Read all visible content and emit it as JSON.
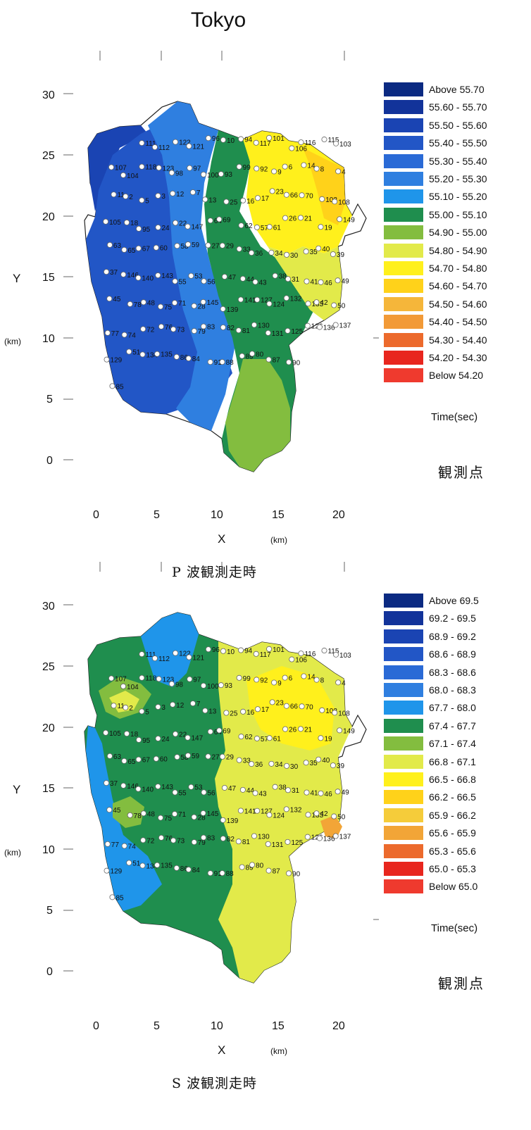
{
  "title": "Tokyo",
  "panels": [
    {
      "id": "p",
      "x_axis": {
        "name": "X",
        "unit": "(km)",
        "ticks": [
          "0",
          "5",
          "10",
          "15",
          "20"
        ]
      },
      "y_axis": {
        "name": "Y",
        "unit": "(km)",
        "ticks": [
          "30",
          "25",
          "20",
          "15",
          "10",
          "5",
          "0"
        ]
      },
      "legend": [
        {
          "label": "Above   55.70",
          "color": "#0b2a82"
        },
        {
          "label": "55.60 - 55.70",
          "color": "#12339a"
        },
        {
          "label": "55.50 - 55.60",
          "color": "#1a44b3"
        },
        {
          "label": "55.40 - 55.50",
          "color": "#2256c6"
        },
        {
          "label": "55.30 - 55.40",
          "color": "#2a6ad6"
        },
        {
          "label": "55.20 - 55.30",
          "color": "#2f7fe0"
        },
        {
          "label": "55.10 - 55.20",
          "color": "#1f95ea"
        },
        {
          "label": "55.00 - 55.10",
          "color": "#1f8e4e"
        },
        {
          "label": "54.90 - 55.00",
          "color": "#83bd3f"
        },
        {
          "label": "54.80 - 54.90",
          "color": "#e2ea4a"
        },
        {
          "label": "54.70 - 54.80",
          "color": "#fff01c"
        },
        {
          "label": "54.60 - 54.70",
          "color": "#ffd21a"
        },
        {
          "label": "54.50 - 54.60",
          "color": "#f5b63a"
        },
        {
          "label": "54.40 - 54.50",
          "color": "#f29a37"
        },
        {
          "label": "54.30 - 54.40",
          "color": "#ec6a2c"
        },
        {
          "label": "54.20 - 54.30",
          "color": "#e8261e"
        },
        {
          "label": "Below   54.20",
          "color": "#ef3a2e"
        }
      ],
      "time_label": "Time(sec)",
      "observation_label": "観測点",
      "caption": "P 波観測走時"
    },
    {
      "id": "s",
      "x_axis": {
        "name": "X",
        "unit": "(km)",
        "ticks": [
          "0",
          "5",
          "10",
          "15",
          "20"
        ]
      },
      "y_axis": {
        "name": "Y",
        "unit": "(km)",
        "ticks": [
          "30",
          "25",
          "20",
          "15",
          "10",
          "5",
          "0"
        ]
      },
      "legend": [
        {
          "label": "Above   69.5",
          "color": "#0b2a82"
        },
        {
          "label": "69.2 - 69.5",
          "color": "#12339a"
        },
        {
          "label": "68.9 - 69.2",
          "color": "#1a44b3"
        },
        {
          "label": "68.6 - 68.9",
          "color": "#2256c6"
        },
        {
          "label": "68.3 - 68.6",
          "color": "#2a6ad6"
        },
        {
          "label": "68.0 - 68.3",
          "color": "#2f7fe0"
        },
        {
          "label": "67.7 - 68.0",
          "color": "#1f95ea"
        },
        {
          "label": "67.4 - 67.7",
          "color": "#1f8e4e"
        },
        {
          "label": "67.1 - 67.4",
          "color": "#83bd3f"
        },
        {
          "label": "66.8 - 67.1",
          "color": "#e2ea4a"
        },
        {
          "label": "66.5 - 66.8",
          "color": "#fff01c"
        },
        {
          "label": "66.2 - 66.5",
          "color": "#ffd21a"
        },
        {
          "label": "65.9 - 66.2",
          "color": "#f5cc3a"
        },
        {
          "label": "65.6 - 65.9",
          "color": "#f2a537"
        },
        {
          "label": "65.3 - 65.6",
          "color": "#ec6a2c"
        },
        {
          "label": "65.0 - 65.3",
          "color": "#e8261e"
        },
        {
          "label": "Below   65.0",
          "color": "#ef3a2e"
        }
      ],
      "time_label": "Time(sec)",
      "observation_label": "観測点",
      "caption": "S 波観測走時"
    }
  ],
  "station_numbers": [
    "111",
    "112",
    "122",
    "121",
    "96",
    "10",
    "94",
    "117",
    "101",
    "106",
    "116",
    "115",
    "103",
    "107",
    "104",
    "118",
    "123",
    "98",
    "97",
    "100",
    "93",
    "99",
    "92",
    "9",
    "6",
    "14",
    "8",
    "4",
    "11",
    "2",
    "5",
    "3",
    "12",
    "7",
    "13",
    "25",
    "16",
    "17",
    "23",
    "66",
    "70",
    "102",
    "108",
    "105",
    "18",
    "95",
    "24",
    "22",
    "147",
    "64",
    "69",
    "62",
    "57",
    "61",
    "26",
    "21",
    "19",
    "149",
    "63",
    "65",
    "67",
    "60",
    "58",
    "59",
    "27",
    "29",
    "33",
    "36",
    "34",
    "30",
    "35",
    "40",
    "39",
    "37",
    "146",
    "140",
    "143",
    "55",
    "53",
    "56",
    "47",
    "44",
    "43",
    "38",
    "31",
    "41",
    "46",
    "49",
    "45",
    "78",
    "48",
    "75",
    "71",
    "28",
    "145",
    "139",
    "141",
    "127",
    "124",
    "132",
    "133",
    "42",
    "50",
    "77",
    "74",
    "72",
    "76",
    "73",
    "79",
    "83",
    "82",
    "81",
    "130",
    "131",
    "125",
    "126",
    "136",
    "137",
    "129",
    "51",
    "134",
    "135",
    "86",
    "84",
    "91",
    "88",
    "89",
    "80",
    "87",
    "90",
    "85"
  ]
}
